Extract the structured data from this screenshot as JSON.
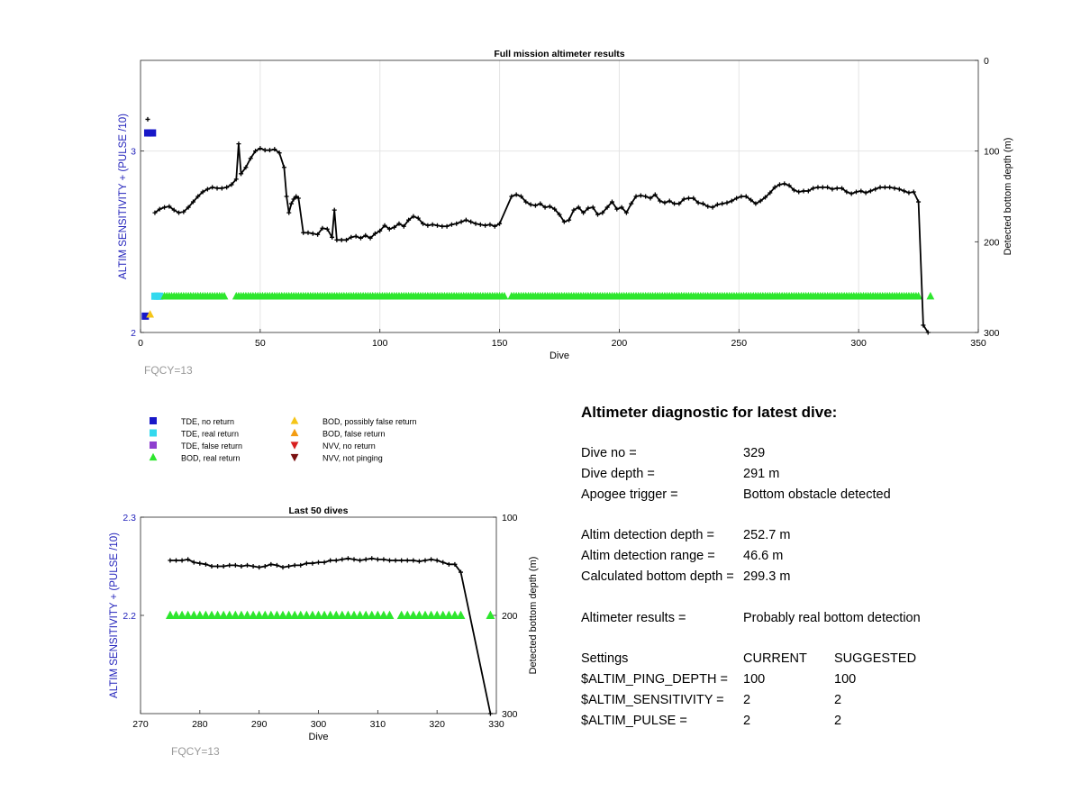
{
  "chart_data": [
    {
      "type": "scatter",
      "title": "Full mission altimeter results",
      "xlabel": "Dive",
      "ylabel": "ALTIM SENSITIVITY + (PULSE /10)",
      "y2label": "Detected bottom depth (m)",
      "xlim": [
        0,
        350
      ],
      "ylim": [
        2,
        3.5
      ],
      "y2lim": [
        300,
        0
      ],
      "xticks": [
        "0",
        "50",
        "100",
        "150",
        "200",
        "250",
        "300",
        "350"
      ],
      "yticks": [
        "2",
        "3"
      ],
      "y2ticks": [
        "0",
        "100",
        "200",
        "300"
      ],
      "grid": true,
      "footnote": "FQCY=13",
      "bottom_depth": {
        "x": [
          3,
          6,
          8,
          10,
          12,
          14,
          16,
          18,
          20,
          22,
          24,
          26,
          28,
          30,
          32,
          34,
          36,
          38,
          40,
          41,
          42,
          44,
          46,
          48,
          50,
          52,
          54,
          56,
          58,
          60,
          61,
          62,
          63,
          64,
          65,
          66,
          68,
          70,
          72,
          74,
          76,
          78,
          80,
          81,
          82,
          84,
          86,
          88,
          90,
          92,
          94,
          96,
          98,
          100,
          102,
          104,
          106,
          108,
          110,
          112,
          114,
          116,
          118,
          120,
          122,
          124,
          126,
          128,
          130,
          132,
          134,
          136,
          138,
          140,
          142,
          144,
          146,
          148,
          150,
          155,
          157,
          159,
          161,
          163,
          165,
          167,
          169,
          171,
          173,
          175,
          177,
          179,
          181,
          183,
          185,
          187,
          189,
          191,
          193,
          195,
          197,
          199,
          201,
          203,
          205,
          207,
          209,
          211,
          213,
          215,
          217,
          219,
          221,
          223,
          225,
          227,
          229,
          231,
          233,
          235,
          237,
          239,
          241,
          243,
          245,
          247,
          249,
          251,
          253,
          255,
          257,
          259,
          261,
          263,
          265,
          267,
          269,
          271,
          273,
          275,
          277,
          279,
          281,
          283,
          285,
          287,
          289,
          291,
          293,
          295,
          297,
          299,
          301,
          303,
          305,
          307,
          309,
          311,
          313,
          315,
          317,
          319,
          321,
          323,
          325,
          327,
          329
        ],
        "depth": [
          65,
          168,
          164,
          162,
          161,
          165,
          168,
          167,
          162,
          156,
          150,
          145,
          142,
          140,
          141,
          141,
          140,
          137,
          131,
          92,
          125,
          118,
          108,
          100,
          97,
          99,
          99,
          98,
          102,
          118,
          150,
          168,
          158,
          153,
          150,
          152,
          190,
          190,
          191,
          192,
          185,
          186,
          195,
          165,
          198,
          198,
          198,
          195,
          194,
          196,
          193,
          196,
          191,
          188,
          182,
          186,
          184,
          180,
          183,
          176,
          172,
          174,
          180,
          182,
          181,
          182,
          183,
          183,
          181,
          180,
          178,
          176,
          178,
          180,
          181,
          182,
          181,
          183,
          180,
          150,
          148,
          150,
          156,
          159,
          160,
          158,
          162,
          161,
          164,
          170,
          178,
          176,
          165,
          162,
          168,
          163,
          162,
          170,
          168,
          162,
          156,
          164,
          162,
          168,
          158,
          150,
          149,
          150,
          152,
          148,
          155,
          157,
          155,
          158,
          158,
          153,
          152,
          152,
          157,
          158,
          161,
          162,
          159,
          158,
          157,
          155,
          152,
          150,
          150,
          154,
          158,
          155,
          151,
          146,
          140,
          137,
          136,
          138,
          143,
          145,
          144,
          144,
          141,
          140,
          140,
          140,
          142,
          141,
          141,
          145,
          147,
          145,
          144,
          146,
          144,
          142,
          140,
          140,
          140,
          141,
          142,
          144,
          146,
          145,
          156,
          292,
          300
        ]
      },
      "series": [
        {
          "name": "TDE, no return",
          "points": [
            [
              2,
              2.09
            ],
            [
              3,
              3.1
            ],
            [
              4,
              3.1
            ],
            [
              5,
              3.1
            ]
          ]
        },
        {
          "name": "TDE, real return",
          "points": [
            [
              6,
              2.2
            ],
            [
              7,
              2.2
            ],
            [
              8,
              2.2
            ]
          ]
        },
        {
          "name": "TDE, false return",
          "points": []
        },
        {
          "name": "BOD, real return",
          "dives": [
            [
              10,
              35
            ],
            [
              40,
              152
            ],
            [
              155,
              325
            ],
            [
              330,
              330
            ]
          ],
          "value": 2.2
        },
        {
          "name": "BOD, possibly false return",
          "points": [
            [
              4,
              2.1
            ]
          ]
        },
        {
          "name": "BOD, false return",
          "points": []
        },
        {
          "name": "NVV, no return",
          "points": []
        },
        {
          "name": "NVV, not pinging",
          "points": []
        }
      ]
    },
    {
      "type": "scatter",
      "title": "Last 50 dives",
      "xlabel": "Dive",
      "ylabel": "ALTIM SENSITIVITY + (PULSE /10)",
      "y2label": "Detected bottom depth (m)",
      "xlim": [
        270,
        330
      ],
      "ylim": [
        2.1,
        2.3
      ],
      "y2lim": [
        300,
        100
      ],
      "xticks": [
        "270",
        "280",
        "290",
        "300",
        "310",
        "320",
        "330"
      ],
      "yticks": [
        "2.2",
        "2.3"
      ],
      "y2ticks": [
        "100",
        "200",
        "300"
      ],
      "grid": false,
      "footnote": "FQCY=13",
      "bottom_depth": {
        "x": [
          275,
          276,
          277,
          278,
          279,
          280,
          281,
          282,
          283,
          284,
          285,
          286,
          287,
          288,
          289,
          290,
          291,
          292,
          293,
          294,
          295,
          296,
          297,
          298,
          299,
          300,
          301,
          302,
          303,
          304,
          305,
          306,
          307,
          308,
          309,
          310,
          311,
          312,
          313,
          314,
          315,
          316,
          317,
          318,
          319,
          320,
          321,
          322,
          323,
          324,
          329
        ],
        "depth": [
          144,
          144,
          144,
          143,
          146,
          147,
          148,
          150,
          150,
          150,
          149,
          149,
          150,
          149,
          150,
          151,
          150,
          148,
          149,
          151,
          150,
          149,
          149,
          147,
          147,
          146,
          146,
          144,
          144,
          143,
          142,
          143,
          144,
          143,
          142,
          143,
          143,
          144,
          144,
          144,
          144,
          144,
          145,
          144,
          143,
          144,
          146,
          148,
          148,
          156,
          300
        ]
      },
      "series": [
        {
          "name": "BOD, real return",
          "dives": [
            [
              275,
              312
            ],
            [
              314,
              324
            ],
            [
              329,
              329
            ]
          ],
          "value": 2.2
        }
      ]
    }
  ],
  "legend": [
    {
      "label": "TDE, no return",
      "color": "#1818c8",
      "marker": "square"
    },
    {
      "label": "TDE, real return",
      "color": "#33d9ee",
      "marker": "square"
    },
    {
      "label": "TDE, false return",
      "color": "#8e3fcf",
      "marker": "square"
    },
    {
      "label": "BOD, real return",
      "color": "#2ee62e",
      "marker": "triangle-up"
    },
    {
      "label": "BOD, possibly false return",
      "color": "#f5c518",
      "marker": "triangle-up"
    },
    {
      "label": "BOD, false return",
      "color": "#f39c12",
      "marker": "triangle-up"
    },
    {
      "label": "NVV, no return",
      "color": "#d81f1f",
      "marker": "triangle-down"
    },
    {
      "label": "NVV, not pinging",
      "color": "#7a1010",
      "marker": "triangle-down"
    }
  ],
  "colors": {
    "left_axis": "#2222bb",
    "line": "#000000",
    "footnote": "#999999"
  },
  "diagnostic": {
    "title": "Altimeter diagnostic for latest dive:",
    "dive_no_label": "Dive no =",
    "dive_no": "329",
    "dive_depth_label": "Dive depth =",
    "dive_depth": "291 m",
    "apogee_label": "Apogee trigger =",
    "apogee": "Bottom obstacle detected",
    "det_depth_label": "Altim detection depth =",
    "det_depth": "252.7 m",
    "det_range_label": "Altim detection range =",
    "det_range": "46.6 m",
    "calc_depth_label": "Calculated bottom depth =",
    "calc_depth": "299.3 m",
    "results_label": "Altimeter results =",
    "results": "Probably real bottom detection",
    "settings_header": "Settings",
    "current_header": "CURRENT",
    "suggested_header": "SUGGESTED",
    "settings": [
      {
        "name": "$ALTIM_PING_DEPTH =",
        "current": "100",
        "suggested": "100"
      },
      {
        "name": "$ALTIM_SENSITIVITY =",
        "current": "2",
        "suggested": "2"
      },
      {
        "name": "$ALTIM_PULSE =",
        "current": "2",
        "suggested": "2"
      }
    ]
  }
}
